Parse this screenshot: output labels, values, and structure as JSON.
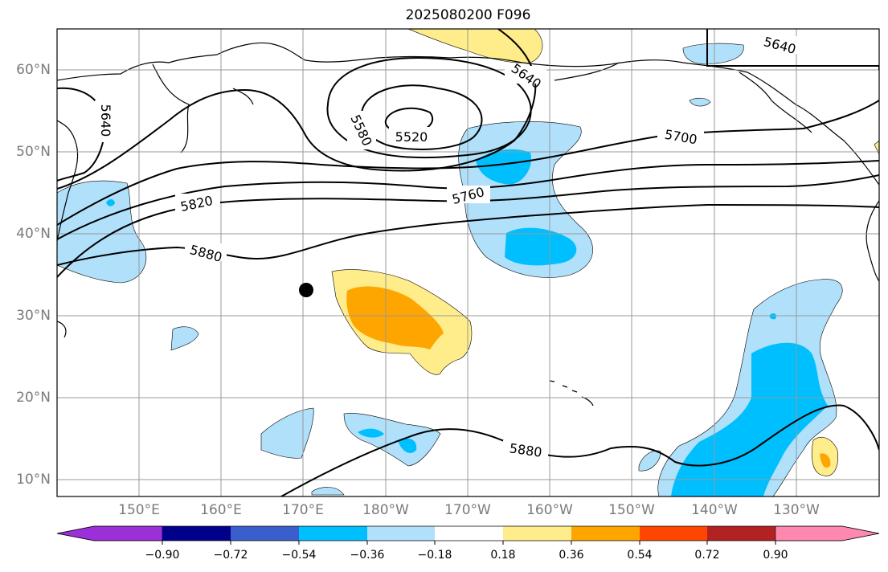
{
  "title": "2025080200 F096",
  "latitude_labels": [
    "60°N",
    "50°N",
    "40°N",
    "30°N",
    "20°N",
    "10°N"
  ],
  "longitude_labels": [
    "150°E",
    "160°E",
    "170°E",
    "180°W",
    "170°W",
    "160°W",
    "150°W",
    "140°W",
    "130°W"
  ],
  "contour_labels": [
    "5640",
    "5640",
    "5640",
    "5580",
    "5520",
    "5700",
    "5760",
    "5820",
    "5880",
    "5880"
  ],
  "colorbar": {
    "tick_labels": [
      "−0.90",
      "−0.72",
      "−0.54",
      "−0.36",
      "−0.18",
      "0.18",
      "0.36",
      "0.54",
      "0.72",
      "0.90"
    ],
    "colors": [
      "#9b30d9",
      "#00008b",
      "#3a5fcd",
      "#00bfff",
      "#b0e0fa",
      "#ffffff",
      "#ffec8b",
      "#ffa500",
      "#ff4500",
      "#b22222",
      "#ff88b0"
    ]
  },
  "marker_color": "#000000"
}
